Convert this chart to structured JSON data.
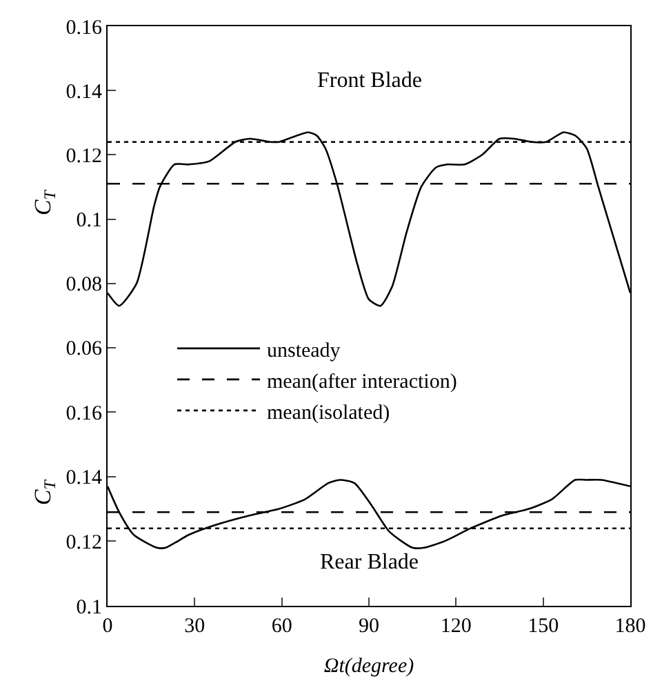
{
  "chart_data": [
    {
      "type": "line",
      "annotations": [
        "Front Blade"
      ],
      "ylabel": "C$_{T}$",
      "xlim": [
        0,
        180
      ],
      "ylim": [
        0.05,
        0.16
      ],
      "yticks": [
        0.06,
        0.08,
        0.1,
        0.12,
        0.14,
        0.16
      ],
      "tick_labels": "y",
      "legend": "bottom",
      "series": [
        {
          "name": "unsteady",
          "color": "#000000",
          "line_style": "solid",
          "x": [
            0,
            4,
            10,
            16,
            18,
            23,
            28,
            35,
            44,
            49,
            56,
            59,
            69,
            72,
            75,
            79,
            86,
            90,
            94,
            98,
            103,
            108,
            113,
            117,
            123,
            129,
            135,
            140,
            146,
            151,
            157,
            161,
            165,
            169,
            176,
            180
          ],
          "values": [
            0.077,
            0.073,
            0.08,
            0.104,
            0.11,
            0.117,
            0.117,
            0.118,
            0.124,
            0.125,
            0.124,
            0.124,
            0.127,
            0.126,
            0.122,
            0.111,
            0.086,
            0.075,
            0.073,
            0.079,
            0.096,
            0.11,
            0.116,
            0.117,
            0.117,
            0.12,
            0.125,
            0.125,
            0.124,
            0.124,
            0.127,
            0.126,
            0.122,
            0.11,
            0.089,
            0.077
          ]
        },
        {
          "name": "mean(after interaction)",
          "color": "#000000",
          "line_style": "dashed",
          "x": [
            0,
            180
          ],
          "values": [
            0.111,
            0.111
          ]
        },
        {
          "name": "mean(isolated)",
          "color": "#000000",
          "line_style": "dotted",
          "x": [
            0,
            180
          ],
          "values": [
            0.124,
            0.124
          ]
        }
      ]
    },
    {
      "type": "line",
      "annotations": [
        "Rear Blade"
      ],
      "xlabel": "Ωt(degree)",
      "ylabel": "C$_{T}$",
      "xlim": [
        0,
        180
      ],
      "ylim": [
        0.1,
        0.17
      ],
      "xticks": [
        0,
        30,
        60,
        90,
        120,
        150,
        180
      ],
      "yticks": [
        0.1,
        0.12,
        0.14,
        0.16
      ],
      "series": [
        {
          "color": "#000000",
          "line_style": "solid",
          "x": [
            0,
            4,
            9,
            17,
            20,
            28,
            37,
            49,
            59,
            68,
            76,
            80,
            85,
            91,
            97,
            105,
            109,
            116,
            125,
            136,
            145,
            153,
            161,
            165,
            170,
            180
          ],
          "values": [
            0.137,
            0.129,
            0.122,
            0.118,
            0.118,
            0.122,
            0.125,
            0.128,
            0.13,
            0.133,
            0.138,
            0.139,
            0.138,
            0.131,
            0.123,
            0.118,
            0.118,
            0.12,
            0.124,
            0.128,
            0.13,
            0.133,
            0.139,
            0.139,
            0.139,
            0.137
          ]
        },
        {
          "color": "#000000",
          "line_style": "dashed",
          "x": [
            0,
            180
          ],
          "values": [
            0.129,
            0.129
          ]
        },
        {
          "color": "#000000",
          "line_style": "dotted",
          "x": [
            0,
            180
          ],
          "values": [
            0.124,
            0.124
          ]
        }
      ]
    }
  ]
}
